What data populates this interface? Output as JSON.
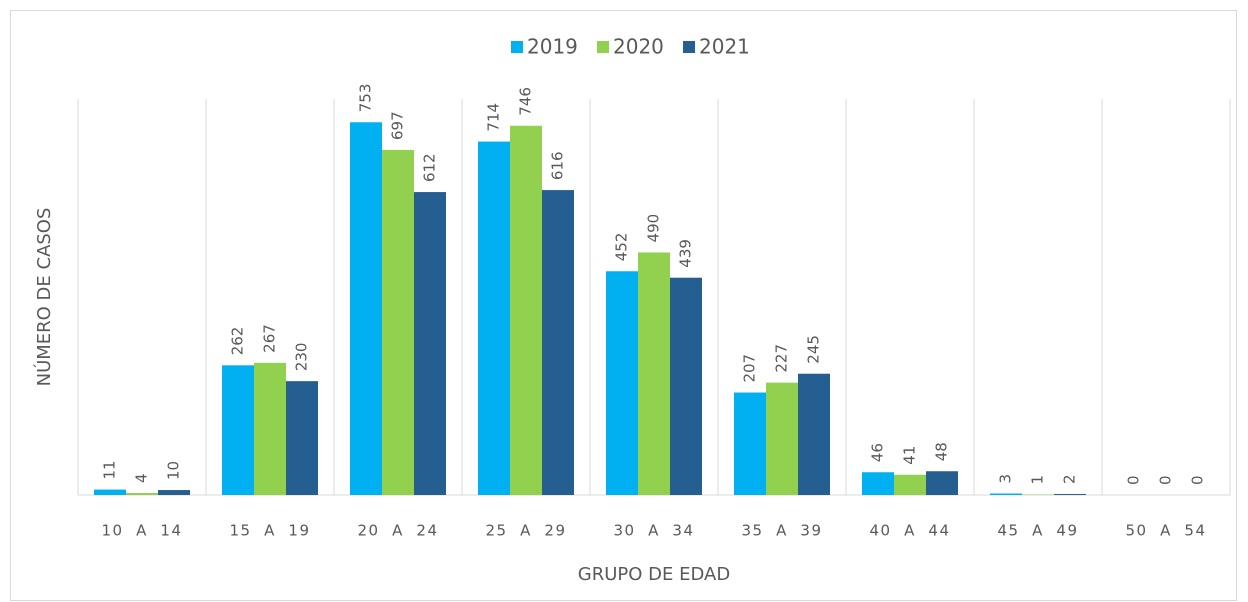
{
  "chart_data": {
    "type": "bar",
    "x_label": "GRUPO DE EDAD",
    "y_label": "NÚMERO DE CASOS",
    "categories": [
      "10  A  14",
      "15  A  19",
      "20  A  24",
      "25  A  29",
      "30  A  34",
      "35  A  39",
      "40  A  44",
      "45  A  49",
      "50  A  54"
    ],
    "series": [
      {
        "name": "2019",
        "color": "#00b0f0",
        "values": [
          11,
          262,
          753,
          714,
          452,
          207,
          46,
          3,
          0
        ]
      },
      {
        "name": "2020",
        "color": "#92d050",
        "values": [
          4,
          267,
          697,
          746,
          490,
          227,
          41,
          1,
          0
        ]
      },
      {
        "name": "2021",
        "color": "#255e91",
        "values": [
          10,
          230,
          612,
          616,
          439,
          245,
          48,
          2,
          0
        ]
      }
    ],
    "ylim": [
      0,
      800
    ],
    "legend": "top"
  }
}
